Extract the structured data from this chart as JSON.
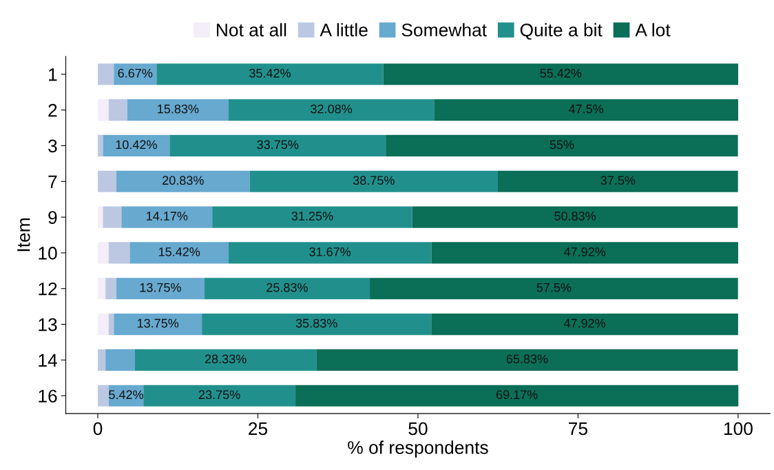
{
  "chart_data": {
    "type": "bar",
    "orientation": "horizontal",
    "stacked": true,
    "xlabel": "% of respondents",
    "ylabel": "Item",
    "categories": [
      "1",
      "2",
      "3",
      "7",
      "9",
      "10",
      "12",
      "13",
      "14",
      "16"
    ],
    "series": [
      {
        "name": "Not at all",
        "color": "#f3eef7",
        "values": [
          0,
          1.7,
          0,
          0,
          0.8,
          1.7,
          1.2,
          1.7,
          0,
          0
        ]
      },
      {
        "name": "A little",
        "color": "#bcc8e2",
        "values": [
          2.5,
          2.9,
          0.8,
          2.9,
          2.9,
          3.3,
          1.7,
          0.8,
          1.2,
          1.7
        ]
      },
      {
        "name": "Somewhat",
        "color": "#67a9cf",
        "values": [
          6.67,
          15.83,
          10.42,
          20.83,
          14.17,
          15.42,
          13.75,
          13.75,
          4.6,
          5.42
        ],
        "value_labels": [
          "6.67%",
          "15.83%",
          "10.42%",
          "20.83%",
          "14.17%",
          "15.42%",
          "13.75%",
          "13.75%",
          null,
          "5.42%"
        ]
      },
      {
        "name": "Quite a bit",
        "color": "#21908d",
        "values": [
          35.42,
          32.08,
          33.75,
          38.75,
          31.25,
          31.67,
          25.83,
          35.83,
          28.33,
          23.75
        ],
        "value_labels": [
          "35.42%",
          "32.08%",
          "33.75%",
          "38.75%",
          "31.25%",
          "31.67%",
          "25.83%",
          "35.83%",
          "28.33%",
          "23.75%"
        ]
      },
      {
        "name": "A lot",
        "color": "#0b6e57",
        "values": [
          55.42,
          47.5,
          55,
          37.5,
          50.83,
          47.92,
          57.5,
          47.92,
          65.83,
          69.17
        ],
        "value_labels": [
          "55.42%",
          "47.5%",
          "55%",
          "37.5%",
          "50.83%",
          "47.92%",
          "57.5%",
          "47.92%",
          "65.83%",
          "69.17%"
        ]
      }
    ],
    "xlim": [
      -5,
      105
    ],
    "xticks": [
      0,
      25,
      50,
      75,
      100
    ],
    "grid": false,
    "legend": "top"
  }
}
